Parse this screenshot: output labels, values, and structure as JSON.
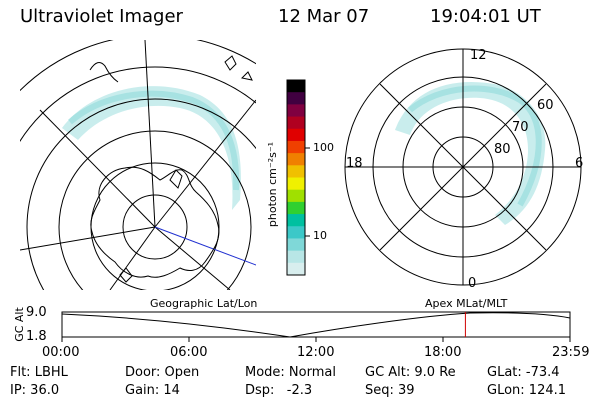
{
  "header": {
    "instrument": "Ultraviolet Imager",
    "date": "12 Mar 07",
    "time": "19:04:01 UT"
  },
  "geo_panel": {
    "caption": "Geographic Lat/Lon"
  },
  "apex_panel": {
    "caption": "Apex MLat/MLT",
    "mlt_labels": [
      "12",
      "18",
      "6",
      "0"
    ],
    "mlat_labels": [
      "60",
      "70",
      "80"
    ]
  },
  "colorbar": {
    "unit_label": "photon cm⁻²s⁻¹",
    "ticks": [
      "100",
      "10"
    ],
    "colors": [
      "#d8eeee",
      "#b8e6e6",
      "#7fd8d8",
      "#3cc8c8",
      "#00c0a0",
      "#30d030",
      "#a0e000",
      "#f0f000",
      "#f0c000",
      "#f08000",
      "#f04000",
      "#e00000",
      "#b00020",
      "#800040",
      "#400040",
      "#000000"
    ]
  },
  "altitude_strip": {
    "axis_label": "GC Alt",
    "y_ticks": [
      "9.0",
      "1.8"
    ],
    "x_ticks": [
      "00:00",
      "06:00",
      "12:00",
      "18:00",
      "23:59"
    ],
    "current_fraction": 0.794
  },
  "info": {
    "flt": "Flt: LBHL",
    "ip": "IP: 36.0",
    "door": "Door: Open",
    "gain": "Gain: 14",
    "mode": "Mode: Normal",
    "dsp": "Dsp:   -2.3",
    "gc_alt": "GC Alt: 9.0 Re",
    "seq": "Seq: 39",
    "glat": "GLat: -73.4",
    "glon": "GLon: 124.1"
  },
  "colors": {
    "aurora": "#9fe0e0",
    "marker": "#d00000",
    "blue_line": "#2030d0"
  }
}
